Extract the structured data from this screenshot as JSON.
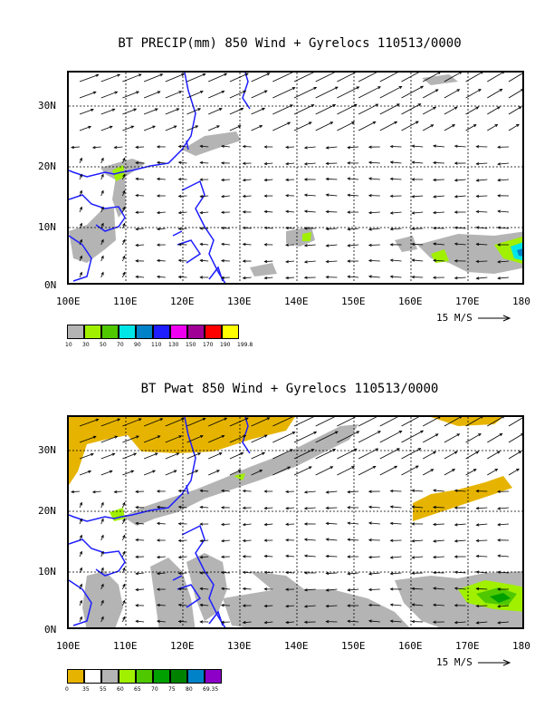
{
  "panels": [
    {
      "title": "BT PRECIP(mm) 850 Wind + Gyrelocs 110513/0000",
      "lat_labels": [
        "30N",
        "20N",
        "10N",
        "0N"
      ],
      "lon_labels": [
        "100E",
        "110E",
        "120E",
        "130E",
        "140E",
        "150E",
        "160E",
        "170E",
        "180"
      ],
      "ref_vector_label": "15 M/S",
      "legend_colors": [
        "#b4b4b4",
        "#a0f000",
        "#50c800",
        "#00e6e6",
        "#0082c8",
        "#1e1eff",
        "#f000f0",
        "#a00096",
        "#ff0000",
        "#ffff00"
      ],
      "legend_labels": [
        "10",
        "30",
        "50",
        "70",
        "90",
        "110",
        "130",
        "150",
        "170",
        "190",
        "199.8"
      ]
    },
    {
      "title": "BT Pwat 850 Wind + Gyrelocs 110513/0000",
      "lat_labels": [
        "30N",
        "20N",
        "10N",
        "0N"
      ],
      "lon_labels": [
        "100E",
        "110E",
        "120E",
        "130E",
        "140E",
        "150E",
        "160E",
        "170E",
        "180"
      ],
      "ref_vector_label": "15 M/S",
      "legend_colors": [
        "#e6b400",
        "#ffffff",
        "#b4b4b4",
        "#a0f000",
        "#50c800",
        "#00a000",
        "#008200",
        "#0082c8",
        "#8c00c8"
      ],
      "legend_labels": [
        "0",
        "35",
        "55",
        "60",
        "65",
        "70",
        "75",
        "80",
        "69.35"
      ]
    }
  ],
  "map": {
    "lon_range": [
      100,
      180
    ],
    "lat_range": [
      0,
      35
    ],
    "grid_lon": [
      110,
      120,
      130,
      140,
      150,
      160,
      170
    ],
    "grid_lat": [
      10,
      20,
      30
    ],
    "coast_color": "#1e1eff"
  }
}
